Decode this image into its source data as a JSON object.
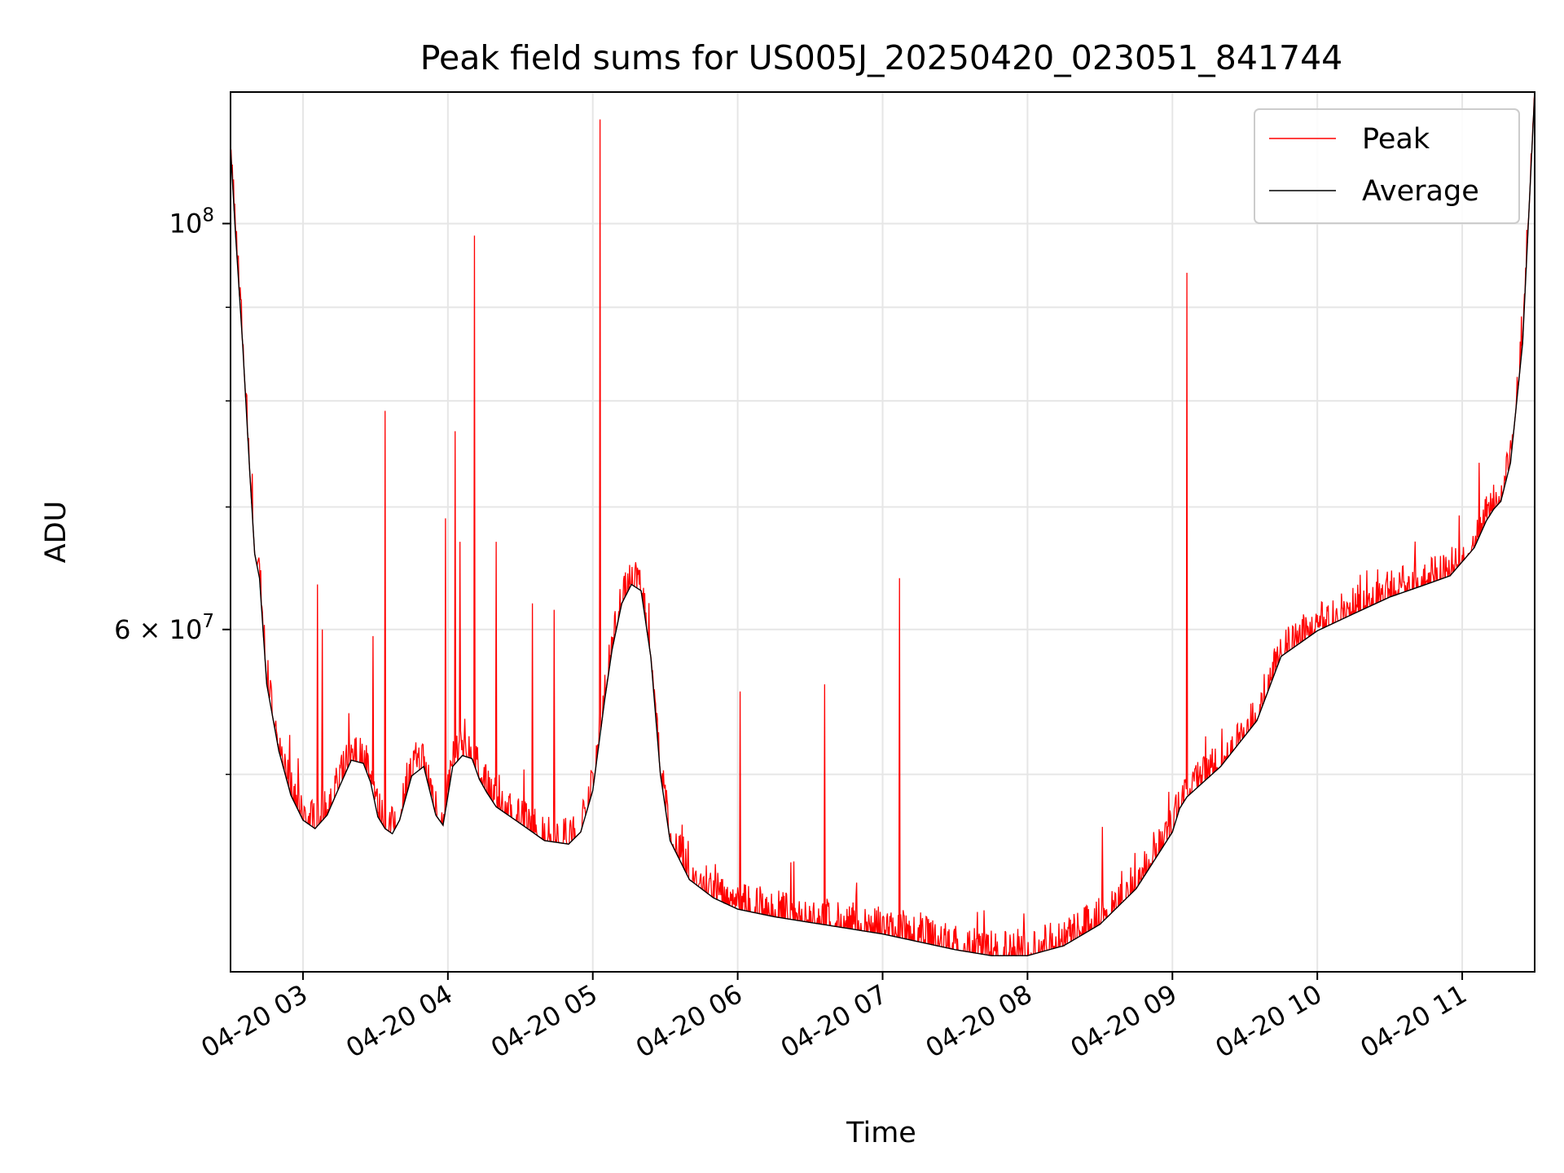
{
  "chart_data": {
    "type": "line",
    "title": "Peak field sums for US005J_20250420_023051_841744",
    "xlabel": "Time",
    "ylabel": "ADU",
    "yscale": "log",
    "grid": true,
    "legend_position": "top-right",
    "xlim": [
      "2025-04-20 02:30",
      "2025-04-20 11:30"
    ],
    "ylim": [
      39000000,
      118000000
    ],
    "x_ticks": [
      {
        "value": "2025-04-20 03:00",
        "label": "04-20 03"
      },
      {
        "value": "2025-04-20 04:00",
        "label": "04-20 04"
      },
      {
        "value": "2025-04-20 05:00",
        "label": "04-20 05"
      },
      {
        "value": "2025-04-20 06:00",
        "label": "04-20 06"
      },
      {
        "value": "2025-04-20 07:00",
        "label": "04-20 07"
      },
      {
        "value": "2025-04-20 08:00",
        "label": "04-20 08"
      },
      {
        "value": "2025-04-20 09:00",
        "label": "04-20 09"
      },
      {
        "value": "2025-04-20 10:00",
        "label": "04-20 10"
      },
      {
        "value": "2025-04-20 11:00",
        "label": "04-20 11"
      }
    ],
    "y_major_ticks": [
      {
        "value": 100000000,
        "label_base": "10",
        "label_exp": "8",
        "label_prefix": ""
      },
      {
        "value": 60000000,
        "label_base": "10",
        "label_exp": "7",
        "label_prefix": "6 × "
      }
    ],
    "y_minor_ticks": [
      50000000,
      70000000,
      80000000,
      90000000
    ],
    "series": [
      {
        "name": "Average",
        "color": "#000000",
        "x": [
          "2025-04-20 02:30",
          "2025-04-20 02:32",
          "2025-04-20 02:35",
          "2025-04-20 02:38",
          "2025-04-20 02:40",
          "2025-04-20 02:42",
          "2025-04-20 02:45",
          "2025-04-20 02:50",
          "2025-04-20 02:55",
          "2025-04-20 03:00",
          "2025-04-20 03:05",
          "2025-04-20 03:10",
          "2025-04-20 03:15",
          "2025-04-20 03:20",
          "2025-04-20 03:25",
          "2025-04-20 03:28",
          "2025-04-20 03:31",
          "2025-04-20 03:34",
          "2025-04-20 03:37",
          "2025-04-20 03:40",
          "2025-04-20 03:45",
          "2025-04-20 03:50",
          "2025-04-20 03:55",
          "2025-04-20 03:58",
          "2025-04-20 04:02",
          "2025-04-20 04:06",
          "2025-04-20 04:10",
          "2025-04-20 04:13",
          "2025-04-20 04:16",
          "2025-04-20 04:20",
          "2025-04-20 04:30",
          "2025-04-20 04:40",
          "2025-04-20 04:50",
          "2025-04-20 04:55",
          "2025-04-20 05:00",
          "2025-04-20 05:05",
          "2025-04-20 05:08",
          "2025-04-20 05:12",
          "2025-04-20 05:16",
          "2025-04-20 05:20",
          "2025-04-20 05:24",
          "2025-04-20 05:28",
          "2025-04-20 05:32",
          "2025-04-20 05:40",
          "2025-04-20 05:50",
          "2025-04-20 06:00",
          "2025-04-20 06:15",
          "2025-04-20 06:30",
          "2025-04-20 06:45",
          "2025-04-20 07:00",
          "2025-04-20 07:15",
          "2025-04-20 07:30",
          "2025-04-20 07:45",
          "2025-04-20 08:00",
          "2025-04-20 08:15",
          "2025-04-20 08:30",
          "2025-04-20 08:45",
          "2025-04-20 09:00",
          "2025-04-20 09:03",
          "2025-04-20 09:06",
          "2025-04-20 09:20",
          "2025-04-20 09:35",
          "2025-04-20 09:40",
          "2025-04-20 09:45",
          "2025-04-20 10:00",
          "2025-04-20 10:15",
          "2025-04-20 10:30",
          "2025-04-20 10:45",
          "2025-04-20 10:55",
          "2025-04-20 11:05",
          "2025-04-20 11:10",
          "2025-04-20 11:13",
          "2025-04-20 11:16",
          "2025-04-20 11:20",
          "2025-04-20 11:25",
          "2025-04-20 11:30"
        ],
        "values": [
          110000000,
          99000000,
          86000000,
          73000000,
          66000000,
          64000000,
          56000000,
          51500000,
          48700000,
          47200000,
          46700000,
          47500000,
          49200000,
          50900000,
          50700000,
          49500000,
          47400000,
          46700000,
          46400000,
          47200000,
          49900000,
          50500000,
          47500000,
          46900000,
          50500000,
          51200000,
          51000000,
          49700000,
          48900000,
          48000000,
          47000000,
          46000000,
          45800000,
          46500000,
          49000000,
          55000000,
          58500000,
          62000000,
          63500000,
          63000000,
          58000000,
          50000000,
          46000000,
          43800000,
          42800000,
          42200000,
          41800000,
          41500000,
          41200000,
          40900000,
          40500000,
          40100000,
          39800000,
          39800000,
          40300000,
          41400000,
          43300000,
          46500000,
          47900000,
          48600000,
          50500000,
          53500000,
          55700000,
          58000000,
          59900000,
          61200000,
          62500000,
          63500000,
          64200000,
          66500000,
          68800000,
          69800000,
          70500000,
          74000000,
          86000000,
          118000000
        ]
      },
      {
        "name": "Peak",
        "color": "#ff0000",
        "spikes": [
          {
            "x": "2025-04-20 02:39",
            "value": 73000000
          },
          {
            "x": "2025-04-20 03:06",
            "value": 63500000
          },
          {
            "x": "2025-04-20 03:08",
            "value": 60000000
          },
          {
            "x": "2025-04-20 03:19",
            "value": 54000000
          },
          {
            "x": "2025-04-20 03:29",
            "value": 59500000
          },
          {
            "x": "2025-04-20 03:34",
            "value": 79000000
          },
          {
            "x": "2025-04-20 03:59",
            "value": 69000000
          },
          {
            "x": "2025-04-20 04:03",
            "value": 77000000
          },
          {
            "x": "2025-04-20 04:05",
            "value": 67000000
          },
          {
            "x": "2025-04-20 04:11",
            "value": 98500000
          },
          {
            "x": "2025-04-20 04:20",
            "value": 67000000
          },
          {
            "x": "2025-04-20 04:35",
            "value": 62000000
          },
          {
            "x": "2025-04-20 04:44",
            "value": 61500000
          },
          {
            "x": "2025-04-20 05:03",
            "value": 114000000
          },
          {
            "x": "2025-04-20 06:01",
            "value": 55500000
          },
          {
            "x": "2025-04-20 06:36",
            "value": 56000000
          },
          {
            "x": "2025-04-20 07:07",
            "value": 64000000
          },
          {
            "x": "2025-04-20 08:31",
            "value": 46800000
          },
          {
            "x": "2025-04-20 09:06",
            "value": 94000000
          },
          {
            "x": "2025-04-20 11:07",
            "value": 74000000
          }
        ]
      }
    ]
  },
  "legend": {
    "items": [
      {
        "name": "Peak",
        "color": "#ff0000"
      },
      {
        "name": "Average",
        "color": "#000000"
      }
    ]
  }
}
